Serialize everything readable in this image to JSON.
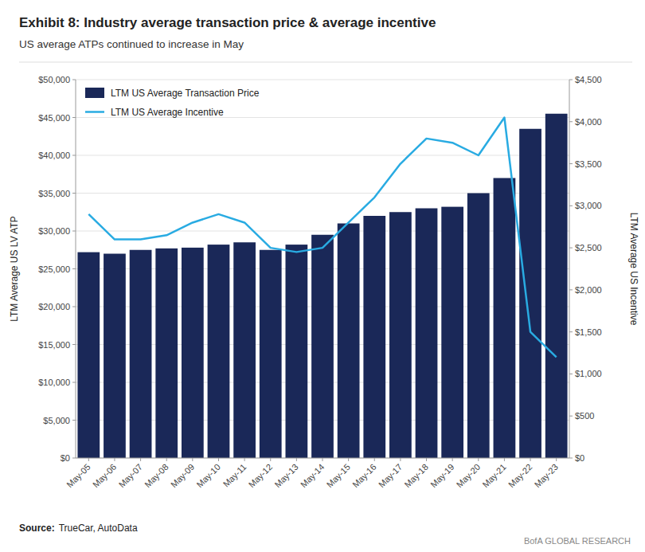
{
  "chart_data": {
    "type": "bar",
    "title": "Exhibit 8: Industry average transaction price & average incentive",
    "subtitle": "US average ATPs continued to increase in May",
    "source_label": "Source:",
    "source": "TrueCar, AutoData",
    "branding": "BofA GLOBAL RESEARCH",
    "categories": [
      "May-05",
      "May-06",
      "May-07",
      "May-08",
      "May-09",
      "May-10",
      "May-11",
      "May-12",
      "May-13",
      "May-14",
      "May-15",
      "May-16",
      "May-17",
      "May-18",
      "May-19",
      "May-20",
      "May-21",
      "May-22",
      "May-23"
    ],
    "series": [
      {
        "name": "LTM US Average Transaction Price",
        "type": "bar",
        "color": "#1a2858",
        "values": [
          27200,
          27000,
          27500,
          27700,
          27800,
          28200,
          28500,
          27500,
          28200,
          29500,
          31000,
          32000,
          32500,
          33000,
          33200,
          35000,
          37000,
          43500,
          45500
        ]
      },
      {
        "name": "LTM US Average Incentive",
        "type": "line",
        "color": "#29abe2",
        "axis": "y2",
        "values": [
          2900,
          2600,
          2600,
          2650,
          2800,
          2900,
          2800,
          2500,
          2450,
          2500,
          2800,
          3100,
          3500,
          3800,
          3750,
          3600,
          4050,
          1500,
          1200
        ]
      }
    ],
    "ylabel": "LTM Average US LV ATP",
    "y2label": "LTM Average US Incentive",
    "ylim": [
      0,
      50000
    ],
    "yticks": [
      {
        "value": 0,
        "label": "$0"
      },
      {
        "value": 5000,
        "label": "$5,000"
      },
      {
        "value": 10000,
        "label": "$10,000"
      },
      {
        "value": 15000,
        "label": "$15,000"
      },
      {
        "value": 20000,
        "label": "$20,000"
      },
      {
        "value": 25000,
        "label": "$25,000"
      },
      {
        "value": 30000,
        "label": "$30,000"
      },
      {
        "value": 35000,
        "label": "$35,000"
      },
      {
        "value": 40000,
        "label": "$40,000"
      },
      {
        "value": 45000,
        "label": "$45,000"
      },
      {
        "value": 50000,
        "label": "$50,000"
      }
    ],
    "y2lim": [
      0,
      4500
    ],
    "y2ticks": [
      {
        "value": 0,
        "label": "$0"
      },
      {
        "value": 500,
        "label": "$500"
      },
      {
        "value": 1000,
        "label": "$1,000"
      },
      {
        "value": 1500,
        "label": "$1,500"
      },
      {
        "value": 2000,
        "label": "$2,000"
      },
      {
        "value": 2500,
        "label": "$2,500"
      },
      {
        "value": 3000,
        "label": "$3,000"
      },
      {
        "value": 3500,
        "label": "$3,500"
      },
      {
        "value": 4000,
        "label": "$4,000"
      },
      {
        "value": 4500,
        "label": "$4,500"
      }
    ],
    "grid": true,
    "legend": "upper left"
  }
}
